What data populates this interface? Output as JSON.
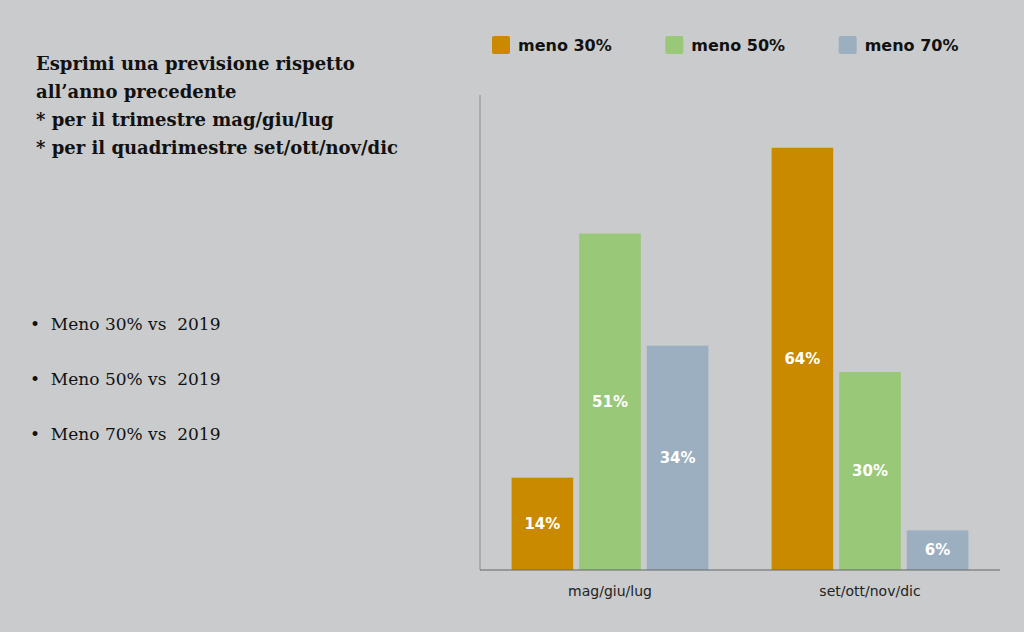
{
  "chart_data": {
    "type": "bar",
    "title": "Esprimi una previsione rispetto\nall’anno precedente\n* per il trimestre mag/giu/lug\n* per il quadrimestre set/ott/nov/dic",
    "annotations": [
      "•  Meno 30% vs  2019",
      "•  Meno 50% vs  2019",
      "•  Meno 70% vs  2019"
    ],
    "categories": [
      "mag/giu/lug",
      "set/ott/nov/dic"
    ],
    "series": [
      {
        "name": "meno 30%",
        "color": "#C98A00",
        "values": [
          14,
          64
        ],
        "value_labels": [
          "14%",
          "64%"
        ]
      },
      {
        "name": "meno 50%",
        "color": "#98C878",
        "values": [
          51,
          30
        ],
        "value_labels": [
          "51%",
          "30%"
        ]
      },
      {
        "name": "meno 70%",
        "color": "#9BAFC0",
        "values": [
          34,
          6
        ],
        "value_labels": [
          "34%",
          "6%"
        ]
      }
    ],
    "ylim": [
      0,
      72
    ],
    "legend": "top",
    "data_labels": true,
    "tick_labels": "x",
    "grid": false
  }
}
